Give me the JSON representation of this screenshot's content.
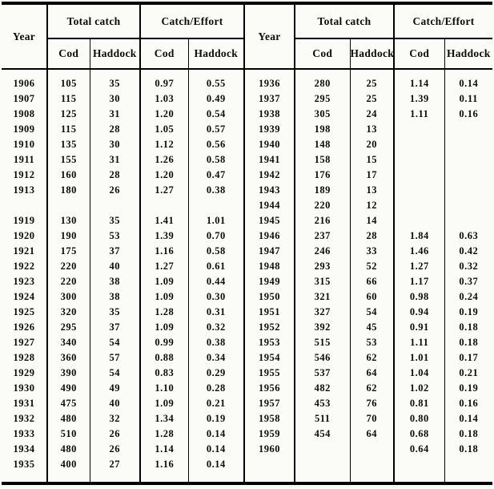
{
  "table": {
    "headers": {
      "year": "Year",
      "total_catch": "Total catch",
      "catch_effort": "Catch/Effort",
      "cod": "Cod",
      "haddock": "Haddock"
    },
    "left_rows": [
      [
        "1906",
        "105",
        "35",
        "0.97",
        "0.55"
      ],
      [
        "1907",
        "115",
        "30",
        "1.03",
        "0.49"
      ],
      [
        "1908",
        "125",
        "31",
        "1.20",
        "0.54"
      ],
      [
        "1909",
        "115",
        "28",
        "1.05",
        "0.57"
      ],
      [
        "1910",
        "135",
        "30",
        "1.12",
        "0.56"
      ],
      [
        "1911",
        "155",
        "31",
        "1.26",
        "0.58"
      ],
      [
        "1912",
        "160",
        "28",
        "1.20",
        "0.47"
      ],
      [
        "1913",
        "180",
        "26",
        "1.27",
        "0.38"
      ],
      [
        "",
        "",
        "",
        "",
        ""
      ],
      [
        "1919",
        "130",
        "35",
        "1.41",
        "1.01"
      ],
      [
        "1920",
        "190",
        "53",
        "1.39",
        "0.70"
      ],
      [
        "1921",
        "175",
        "37",
        "1.16",
        "0.58"
      ],
      [
        "1922",
        "220",
        "40",
        "1.27",
        "0.61"
      ],
      [
        "1923",
        "220",
        "38",
        "1.09",
        "0.44"
      ],
      [
        "1924",
        "300",
        "38",
        "1.09",
        "0.30"
      ],
      [
        "1925",
        "320",
        "35",
        "1.28",
        "0.31"
      ],
      [
        "1926",
        "295",
        "37",
        "1.09",
        "0.32"
      ],
      [
        "1927",
        "340",
        "54",
        "0.99",
        "0.38"
      ],
      [
        "1928",
        "360",
        "57",
        "0.88",
        "0.34"
      ],
      [
        "1929",
        "390",
        "54",
        "0.83",
        "0.29"
      ],
      [
        "1930",
        "490",
        "49",
        "1.10",
        "0.28"
      ],
      [
        "1931",
        "475",
        "40",
        "1.09",
        "0.21"
      ],
      [
        "1932",
        "480",
        "32",
        "1.34",
        "0.19"
      ],
      [
        "1933",
        "510",
        "26",
        "1.28",
        "0.14"
      ],
      [
        "1934",
        "480",
        "26",
        "1.14",
        "0.14"
      ],
      [
        "1935",
        "400",
        "27",
        "1.16",
        "0.14"
      ]
    ],
    "right_rows": [
      [
        "1936",
        "280",
        "25",
        "1.14",
        "0.14"
      ],
      [
        "1937",
        "295",
        "25",
        "1.39",
        "0.11"
      ],
      [
        "1938",
        "305",
        "24",
        "1.11",
        "0.16"
      ],
      [
        "1939",
        "198",
        "13",
        "",
        ""
      ],
      [
        "1940",
        "148",
        "20",
        "",
        ""
      ],
      [
        "1941",
        "158",
        "15",
        "",
        ""
      ],
      [
        "1942",
        "176",
        "17",
        "",
        ""
      ],
      [
        "1943",
        "189",
        "13",
        "",
        ""
      ],
      [
        "1944",
        "220",
        "12",
        "",
        ""
      ],
      [
        "1945",
        "216",
        "14",
        "",
        ""
      ],
      [
        "1946",
        "237",
        "28",
        "1.84",
        "0.63"
      ],
      [
        "1947",
        "246",
        "33",
        "1.46",
        "0.42"
      ],
      [
        "1948",
        "293",
        "52",
        "1.27",
        "0.32"
      ],
      [
        "1949",
        "315",
        "66",
        "1.17",
        "0.37"
      ],
      [
        "1950",
        "321",
        "60",
        "0.98",
        "0.24"
      ],
      [
        "1951",
        "327",
        "54",
        "0.94",
        "0.19"
      ],
      [
        "1952",
        "392",
        "45",
        "0.91",
        "0.18"
      ],
      [
        "1953",
        "515",
        "53",
        "1.11",
        "0.18"
      ],
      [
        "1954",
        "546",
        "62",
        "1.01",
        "0.17"
      ],
      [
        "1955",
        "537",
        "64",
        "1.04",
        "0.21"
      ],
      [
        "1956",
        "482",
        "62",
        "1.02",
        "0.19"
      ],
      [
        "1957",
        "453",
        "76",
        "0.81",
        "0.16"
      ],
      [
        "1958",
        "511",
        "70",
        "0.80",
        "0.14"
      ],
      [
        "1959",
        "454",
        "64",
        "0.68",
        "0.18"
      ],
      [
        "1960",
        "",
        "",
        "0.64",
        "0.18"
      ],
      [
        "",
        "",
        "",
        "",
        ""
      ]
    ]
  }
}
